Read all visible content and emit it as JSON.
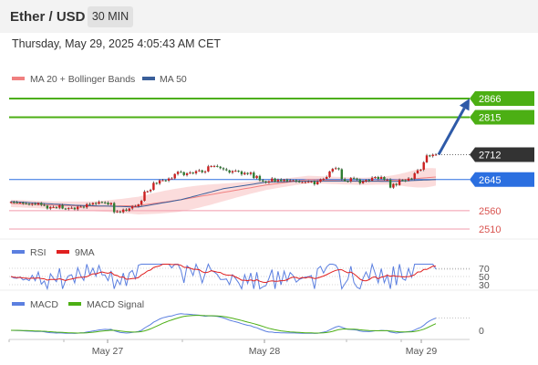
{
  "header": {
    "title": "Ether / USD",
    "timeframe": "30 MIN"
  },
  "datetime": "Thursday, May 29, 2025 4:05:43 AM CET",
  "colors": {
    "bull": "#cc1f1f",
    "bear": "#2e7d32",
    "ma20": "#f08080",
    "ma50": "#3a5f9a",
    "resistance": "#4caf14",
    "pivot": "#2b6fe0",
    "support": "#f29bac",
    "rsi": "#5b7fe0",
    "rsi_ma": "#e02020",
    "macd": "#5b7fe0",
    "macd_signal": "#4caf14",
    "arrow": "#2e5aa8",
    "current_box": "#333333"
  },
  "chart_data": [
    {
      "type": "candlestick",
      "legend": [
        "MA 20 + Bollinger Bands",
        "MA 50"
      ],
      "x_ticks": [
        "May 27",
        "May 28",
        "May 29"
      ],
      "ylim": [
        2490,
        2900
      ],
      "current_price": "2712",
      "levels": [
        {
          "value": 2866,
          "label": "2866",
          "kind": "resistance"
        },
        {
          "value": 2815,
          "label": "2815",
          "kind": "resistance"
        },
        {
          "value": 2645,
          "label": "2645",
          "kind": "pivot"
        },
        {
          "value": 2560,
          "label": "2560",
          "kind": "support"
        },
        {
          "value": 2510,
          "label": "2510",
          "kind": "support"
        }
      ],
      "close": [
        2584,
        2583,
        2582,
        2582,
        2580,
        2579,
        2577,
        2579,
        2577,
        2581,
        2576,
        2574,
        2566,
        2570,
        2570,
        2568,
        2575,
        2566,
        2565,
        2567,
        2568,
        2564,
        2571,
        2571,
        2569,
        2578,
        2577,
        2581,
        2579,
        2584,
        2583,
        2582,
        2577,
        2581,
        2556,
        2558,
        2556,
        2563,
        2560,
        2566,
        2572,
        2572,
        2577,
        2587,
        2612,
        2613,
        2617,
        2636,
        2634,
        2643,
        2643,
        2642,
        2648,
        2648,
        2660,
        2666,
        2665,
        2657,
        2662,
        2664,
        2662,
        2668,
        2670,
        2665,
        2667,
        2681,
        2682,
        2682,
        2680,
        2676,
        2673,
        2670,
        2664,
        2668,
        2669,
        2667,
        2659,
        2663,
        2660,
        2664,
        2649,
        2655,
        2643,
        2640,
        2637,
        2640,
        2648,
        2640,
        2645,
        2641,
        2645,
        2641,
        2643,
        2643,
        2640,
        2638,
        2638,
        2638,
        2639,
        2640,
        2632,
        2639,
        2646,
        2647,
        2652,
        2667,
        2674,
        2676,
        2673,
        2646,
        2641,
        2640,
        2649,
        2648,
        2645,
        2635,
        2640,
        2644,
        2642,
        2650,
        2652,
        2647,
        2652,
        2645,
        2645,
        2623,
        2633,
        2630,
        2644,
        2643,
        2642,
        2648,
        2647,
        2662,
        2670,
        2672,
        2692,
        2711,
        2709,
        2713,
        2713
      ],
      "ma20_center_points": [
        [
          0,
          2580
        ],
        [
          20,
          2575
        ],
        [
          40,
          2572
        ],
        [
          60,
          2574
        ],
        [
          80,
          2590
        ],
        [
          100,
          2610
        ],
        [
          120,
          2630
        ],
        [
          140,
          2645
        ],
        [
          155,
          2642
        ],
        [
          165,
          2640
        ],
        [
          175,
          2642
        ],
        [
          185,
          2645
        ],
        [
          200,
          2652
        ]
      ],
      "ma50_points": [
        [
          0,
          2585
        ],
        [
          30,
          2575
        ],
        [
          60,
          2570
        ],
        [
          80,
          2590
        ],
        [
          100,
          2620
        ],
        [
          120,
          2638
        ],
        [
          140,
          2641
        ],
        [
          160,
          2641
        ],
        [
          180,
          2640
        ],
        [
          200,
          2645
        ]
      ]
    },
    {
      "type": "line",
      "name": "RSI",
      "legend": [
        "RSI",
        "9MA"
      ],
      "y_ticks": [
        "70",
        "50",
        "30"
      ],
      "last": [
        68,
        70
      ]
    },
    {
      "type": "line",
      "name": "MACD",
      "legend": [
        "MACD",
        "MACD Signal"
      ],
      "y_ticks": [
        "0"
      ],
      "last": [
        12,
        8
      ]
    }
  ]
}
